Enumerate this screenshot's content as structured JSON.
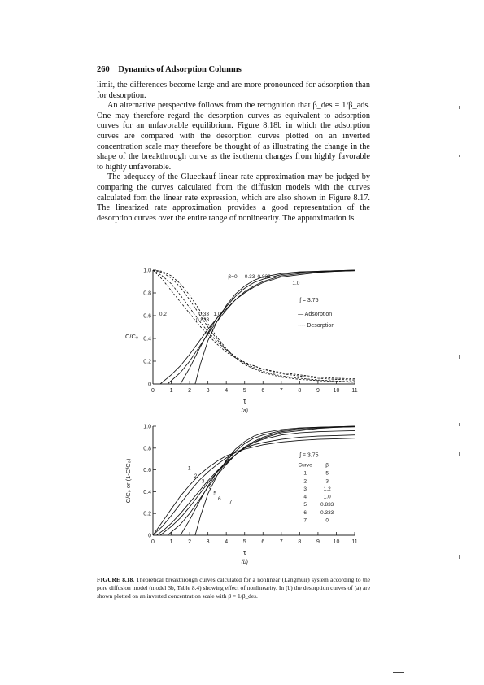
{
  "header": {
    "page_number": "260",
    "running_title": "Dynamics of Adsorption Columns"
  },
  "paragraphs": [
    {
      "text": "limit, the differences become large and are more pronounced for adsorption than for desorption.",
      "indent": false
    },
    {
      "text": "An alternative perspective follows from the recognition that β_des = 1/β_ads. One may therefore regard the desorption curves as equivalent to adsorption curves for an unfavorable equilibrium. Figure 8.18b in which the adsorption curves are compared with the desorption curves plotted on an inverted concentration scale may therefore be thought of as illustrating the change in the shape of the breakthrough curve as the isotherm changes from highly favorable to highly unfavorable.",
      "indent": true
    },
    {
      "text": "The adequacy of the Glueckauf linear rate approximation may be judged by comparing the curves calculated from the diffusion models with the curves calculated fom the linear rate expression, which are also shown in Figure 8.17. The linearized rate approximation provides a good representation of the desorption curves over the entire range of nonlinearity. The approximation is",
      "indent": true
    }
  ],
  "chart_data": [
    {
      "type": "line",
      "panel_label": "(a)",
      "xlabel": "τ",
      "ylabel": "C/C₀",
      "xlim": [
        0,
        11
      ],
      "ylim": [
        0,
        1.0
      ],
      "x_ticks": [
        "0",
        "1",
        "2",
        "3",
        "4",
        "5",
        "6",
        "7",
        "8",
        "9",
        "10",
        "11"
      ],
      "y_ticks": [
        "0",
        "0.2",
        "0.4",
        "0.6",
        "0.8",
        "1.0"
      ],
      "parameter_label": "ʃ = 3.75",
      "legend": [
        "— Adsorption",
        "---- Desorption"
      ],
      "series": [
        {
          "name": "β=0",
          "kind": "adsorption",
          "x": [
            2.3,
            2.6,
            3.0,
            3.5,
            4.0,
            4.5,
            5.0,
            5.5,
            6.0,
            7.0,
            8.0,
            9.0,
            10.0,
            11.0
          ],
          "y": [
            0,
            0.18,
            0.38,
            0.55,
            0.69,
            0.79,
            0.86,
            0.91,
            0.94,
            0.97,
            0.985,
            0.99,
            0.995,
            1.0
          ]
        },
        {
          "name": "0.33",
          "kind": "adsorption",
          "x": [
            1.5,
            2.0,
            2.5,
            3.0,
            3.5,
            4.0,
            4.5,
            5.0,
            5.5,
            6.0,
            7.0,
            8.0,
            9.0,
            10.0,
            11.0
          ],
          "y": [
            0,
            0.14,
            0.3,
            0.45,
            0.58,
            0.68,
            0.77,
            0.84,
            0.89,
            0.92,
            0.96,
            0.98,
            0.99,
            0.995,
            1.0
          ]
        },
        {
          "name": "0.833",
          "kind": "adsorption",
          "x": [
            0.8,
            1.5,
            2.0,
            2.5,
            3.0,
            3.5,
            4.0,
            4.5,
            5.0,
            5.5,
            6.0,
            7.0,
            8.0,
            9.0,
            10.0,
            11.0
          ],
          "y": [
            0,
            0.1,
            0.2,
            0.32,
            0.44,
            0.55,
            0.65,
            0.74,
            0.81,
            0.86,
            0.9,
            0.95,
            0.97,
            0.985,
            0.99,
            0.995
          ]
        },
        {
          "name": "1.0",
          "kind": "adsorption",
          "x": [
            0.4,
            1.0,
            1.5,
            2.0,
            2.5,
            3.0,
            3.5,
            4.0,
            4.5,
            5.0,
            5.5,
            6.0,
            7.0,
            8.0,
            9.0,
            10.0,
            11.0
          ],
          "y": [
            0,
            0.08,
            0.16,
            0.26,
            0.37,
            0.48,
            0.58,
            0.66,
            0.74,
            0.8,
            0.85,
            0.89,
            0.94,
            0.96,
            0.98,
            0.99,
            0.995
          ]
        },
        {
          "name": "0.2",
          "kind": "desorption",
          "x": [
            0,
            0.5,
            1.0,
            1.5,
            2.0,
            2.5,
            3.0,
            3.5,
            4.0,
            4.5,
            5.0,
            6.0,
            7.0,
            8.0,
            9.0,
            10.0,
            11.0
          ],
          "y": [
            1.0,
            0.92,
            0.82,
            0.72,
            0.62,
            0.52,
            0.43,
            0.35,
            0.28,
            0.23,
            0.19,
            0.13,
            0.1,
            0.08,
            0.06,
            0.05,
            0.045
          ]
        },
        {
          "name": "0.33",
          "kind": "desorption",
          "x": [
            0,
            0.5,
            1.0,
            1.5,
            2.0,
            2.5,
            3.0,
            3.5,
            4.0,
            4.5,
            5.0,
            6.0,
            7.0,
            8.0,
            9.0,
            10.0,
            11.0
          ],
          "y": [
            1.0,
            0.95,
            0.88,
            0.78,
            0.67,
            0.56,
            0.46,
            0.37,
            0.3,
            0.24,
            0.19,
            0.13,
            0.09,
            0.07,
            0.05,
            0.04,
            0.035
          ]
        },
        {
          "name": "0.833",
          "kind": "desorption",
          "x": [
            0,
            0.5,
            1.0,
            1.5,
            2.0,
            2.5,
            3.0,
            3.5,
            4.0,
            4.5,
            5.0,
            6.0,
            7.0,
            8.0,
            9.0,
            10.0,
            11.0
          ],
          "y": [
            1.0,
            0.98,
            0.93,
            0.85,
            0.74,
            0.62,
            0.5,
            0.39,
            0.3,
            0.23,
            0.18,
            0.11,
            0.07,
            0.05,
            0.035,
            0.025,
            0.02
          ]
        },
        {
          "name": "1.0",
          "kind": "desorption",
          "x": [
            0,
            0.5,
            1.0,
            1.5,
            2.0,
            2.5,
            3.0,
            3.5,
            4.0,
            4.5,
            5.0,
            6.0,
            7.0,
            8.0,
            9.0,
            10.0,
            11.0
          ],
          "y": [
            1.0,
            0.99,
            0.95,
            0.88,
            0.78,
            0.66,
            0.53,
            0.41,
            0.31,
            0.23,
            0.17,
            0.1,
            0.06,
            0.04,
            0.03,
            0.02,
            0.015
          ]
        }
      ]
    },
    {
      "type": "line",
      "panel_label": "(b)",
      "xlabel": "τ",
      "ylabel": "C/C₀ or (1-C/C₀)",
      "xlim": [
        0,
        11
      ],
      "ylim": [
        0,
        1.0
      ],
      "x_ticks": [
        "0",
        "1",
        "2",
        "3",
        "4",
        "5",
        "6",
        "7",
        "8",
        "9",
        "10",
        "11"
      ],
      "y_ticks": [
        "0",
        "0.2",
        "0.4",
        "0.6",
        "0.8",
        "1.0"
      ],
      "parameter_label": "ʃ = 3.75",
      "table": {
        "headers": [
          "Curve",
          "β"
        ],
        "rows": [
          [
            "1",
            "5"
          ],
          [
            "2",
            "3"
          ],
          [
            "3",
            "1.2"
          ],
          [
            "4",
            "1.0"
          ],
          [
            "5",
            "0.833"
          ],
          [
            "6",
            "0.333"
          ],
          [
            "7",
            "0"
          ]
        ]
      },
      "series": [
        {
          "name": "1",
          "x": [
            0,
            0.5,
            1.0,
            1.5,
            2.0,
            2.5,
            3.0,
            3.5,
            4.0,
            4.5,
            5.0,
            5.5,
            6.0,
            7.0,
            8.0,
            9.0,
            10.0,
            11.0
          ],
          "y": [
            0,
            0.12,
            0.24,
            0.36,
            0.46,
            0.55,
            0.62,
            0.68,
            0.73,
            0.76,
            0.79,
            0.81,
            0.83,
            0.855,
            0.87,
            0.88,
            0.885,
            0.89
          ]
        },
        {
          "name": "2",
          "x": [
            0,
            0.5,
            1.0,
            1.5,
            2.0,
            2.5,
            3.0,
            3.5,
            4.0,
            4.5,
            5.0,
            5.5,
            6.0,
            7.0,
            8.0,
            9.0,
            10.0,
            11.0
          ],
          "y": [
            0,
            0.08,
            0.18,
            0.29,
            0.4,
            0.5,
            0.58,
            0.65,
            0.71,
            0.76,
            0.8,
            0.83,
            0.85,
            0.88,
            0.9,
            0.91,
            0.915,
            0.92
          ]
        },
        {
          "name": "3",
          "x": [
            0.2,
            0.6,
            1.0,
            1.5,
            2.0,
            2.5,
            3.0,
            3.5,
            4.0,
            4.5,
            5.0,
            5.5,
            6.0,
            7.0,
            8.0,
            9.0,
            10.0,
            11.0
          ],
          "y": [
            0,
            0.05,
            0.11,
            0.2,
            0.3,
            0.4,
            0.5,
            0.59,
            0.67,
            0.74,
            0.8,
            0.85,
            0.88,
            0.92,
            0.94,
            0.95,
            0.955,
            0.96
          ]
        },
        {
          "name": "4",
          "x": [
            0.4,
            1.0,
            1.5,
            2.0,
            2.5,
            3.0,
            3.5,
            4.0,
            4.5,
            5.0,
            5.5,
            6.0,
            7.0,
            8.0,
            9.0,
            10.0,
            11.0
          ],
          "y": [
            0,
            0.08,
            0.16,
            0.26,
            0.37,
            0.48,
            0.58,
            0.66,
            0.74,
            0.8,
            0.85,
            0.89,
            0.94,
            0.96,
            0.98,
            0.99,
            0.995
          ]
        },
        {
          "name": "5",
          "x": [
            0.8,
            1.5,
            2.0,
            2.5,
            3.0,
            3.5,
            4.0,
            4.5,
            5.0,
            5.5,
            6.0,
            7.0,
            8.0,
            9.0,
            10.0,
            11.0
          ],
          "y": [
            0,
            0.1,
            0.2,
            0.32,
            0.44,
            0.55,
            0.65,
            0.74,
            0.81,
            0.86,
            0.9,
            0.95,
            0.97,
            0.985,
            0.99,
            0.995
          ]
        },
        {
          "name": "6",
          "x": [
            1.5,
            2.0,
            2.5,
            3.0,
            3.5,
            4.0,
            4.5,
            5.0,
            5.5,
            6.0,
            7.0,
            8.0,
            9.0,
            10.0,
            11.0
          ],
          "y": [
            0,
            0.14,
            0.3,
            0.45,
            0.58,
            0.68,
            0.77,
            0.84,
            0.89,
            0.92,
            0.96,
            0.98,
            0.99,
            0.995,
            1.0
          ]
        },
        {
          "name": "7",
          "x": [
            2.3,
            2.6,
            3.0,
            3.5,
            4.0,
            4.5,
            5.0,
            5.5,
            6.0,
            7.0,
            8.0,
            9.0,
            10.0,
            11.0
          ],
          "y": [
            0,
            0.18,
            0.38,
            0.55,
            0.69,
            0.79,
            0.86,
            0.91,
            0.94,
            0.97,
            0.985,
            0.99,
            0.995,
            1.0
          ]
        }
      ]
    }
  ],
  "caption": {
    "label": "FIGURE 8.18.",
    "text": "Theoretical breakthrough curves calculated for a nonlinear (Langmuir) system according to the pore diffusion model (model 3b, Table 8.4) showing effect of nonlinearity. In (b) the desorption curves of (a) are shown plotted on an inverted concentration scale with β = 1/β_des."
  }
}
